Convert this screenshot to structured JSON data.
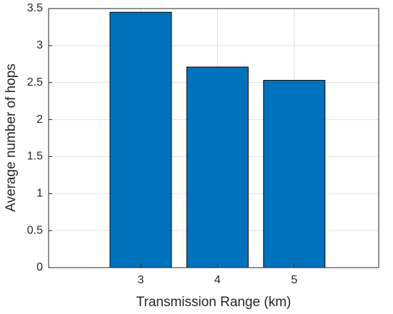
{
  "chart_data": {
    "type": "bar",
    "x": [
      3,
      4,
      5
    ],
    "values": [
      3.45,
      2.71,
      2.53
    ],
    "color": "#0072bd",
    "xlabel": "Transmission Range (km)",
    "ylabel": "Average number of hops",
    "xlim": [
      1.8,
      6.1
    ],
    "xticks": [
      3,
      4,
      5
    ],
    "ylim": [
      0,
      3.5
    ],
    "yticks": [
      0,
      0.5,
      1,
      1.5,
      2,
      2.5,
      3,
      3.5
    ],
    "grid": true
  }
}
